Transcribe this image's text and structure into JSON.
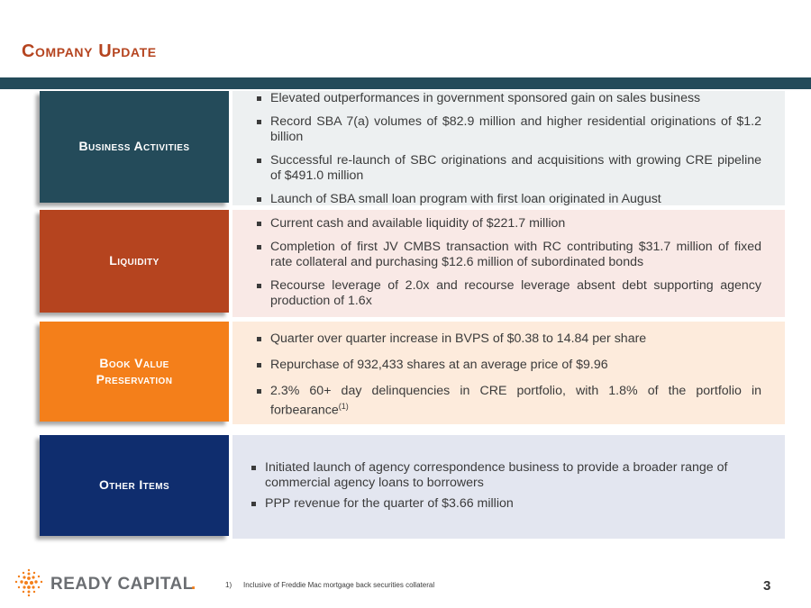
{
  "page": {
    "title": "Company Update",
    "page_number": "3"
  },
  "colors": {
    "title": "#b5441f",
    "bar": "#244b5a",
    "business": "#244b5a",
    "liquidity": "#b5441f",
    "book_value": "#f47f1a",
    "other": "#0f2d6e"
  },
  "sections": [
    {
      "label": "Business Activities",
      "bullets": [
        "Elevated outperformances in government sponsored gain on sales business",
        "Record SBA 7(a) volumes of $82.9 million and higher residential originations of $1.2 billion",
        "Successful re-launch of SBC originations and acquisitions with growing CRE pipeline of $491.0 million",
        "Launch of SBA small loan program with first loan originated in August"
      ]
    },
    {
      "label": "Liquidity",
      "bullets": [
        "Current cash and available liquidity of $221.7 million",
        "Completion of first JV CMBS transaction with RC contributing $31.7 million of fixed rate collateral and purchasing $12.6 million of subordinated bonds",
        "Recourse leverage of 2.0x and recourse leverage absent debt supporting agency production of 1.6x"
      ]
    },
    {
      "label_line1": "Book Value",
      "label_line2": "Preservation",
      "bullets": [
        "Quarter over quarter increase in BVPS of $0.38 to 14.84 per share",
        "Repurchase of 932,433 shares at an average price of $9.96",
        "2.3% 60+ day delinquencies in CRE portfolio, with 1.8% of the portfolio in forbearance"
      ],
      "footnote_marker": "(1)"
    },
    {
      "label": "Other Items",
      "bullets": [
        "Initiated launch of agency correspondence business to provide a broader range of commercial agency loans to borrowers",
        "PPP revenue for the quarter of $3.66 million"
      ]
    }
  ],
  "footer": {
    "logo_text": "READY CAPITAL",
    "logo_mark": ".",
    "footnote_number": "1)",
    "footnote_text": "Inclusive of Freddie Mac mortgage back securities collateral"
  }
}
